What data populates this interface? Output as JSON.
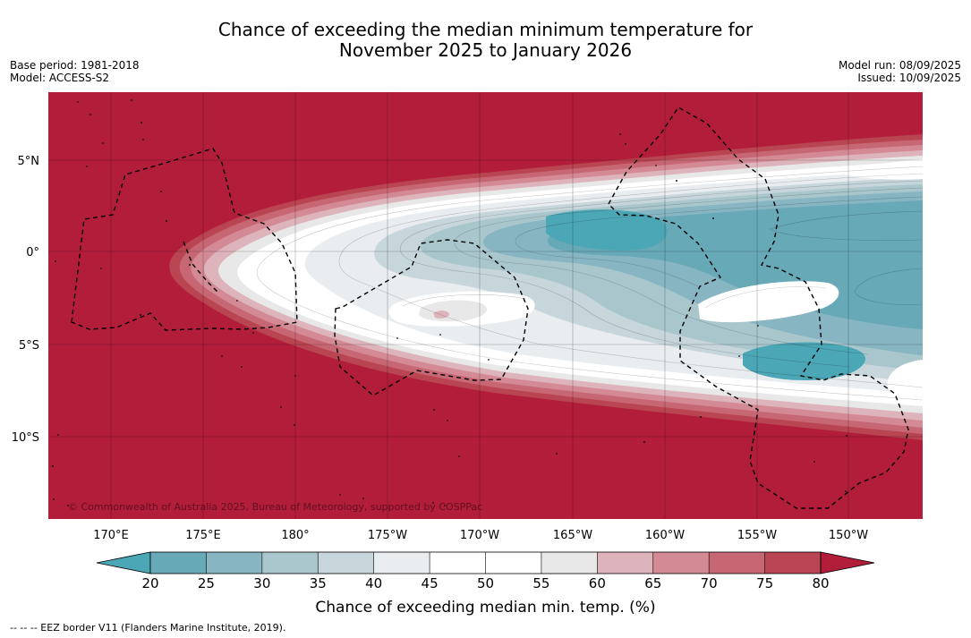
{
  "header": {
    "title_line1": "Chance of exceeding the median minimum temperature for",
    "title_line2": "November 2025 to January 2026",
    "base_period": "Base period: 1981-2018",
    "model": "Model: ACCESS-S2",
    "model_run": "Model run: 08/09/2025",
    "issued": "Issued: 10/09/2025"
  },
  "map": {
    "copyright": "© Commonwealth of Australia 2025, Bureau of Meteorology, supported by COSPPac",
    "lat_labels": [
      "5°N",
      "0°",
      "5°S",
      "10°S"
    ],
    "lon_labels": [
      "170°E",
      "175°E",
      "180°",
      "175°W",
      "170°W",
      "165°W",
      "160°W",
      "155°W",
      "150°W"
    ],
    "ocean_color": "#b21d3a"
  },
  "colorbar": {
    "label": "Chance of exceeding median min. temp. (%)",
    "ticks": [
      "20",
      "25",
      "30",
      "35",
      "40",
      "45",
      "50",
      "55",
      "60",
      "65",
      "70",
      "75",
      "80"
    ],
    "colors": [
      "#67a9b7",
      "#87b5c2",
      "#a9c6cd",
      "#c7d6db",
      "#e9edf0",
      "#ffffff",
      "#ffffff",
      "#e8e8e8",
      "#ddb4bb",
      "#d48a94",
      "#c76774",
      "#b94452"
    ],
    "low_color": "#4ba6b6",
    "high_color": "#b21d3a"
  },
  "footer": {
    "eez_note": "--  --  -- EEZ border V11 (Flanders Marine Institute, 2019)."
  }
}
